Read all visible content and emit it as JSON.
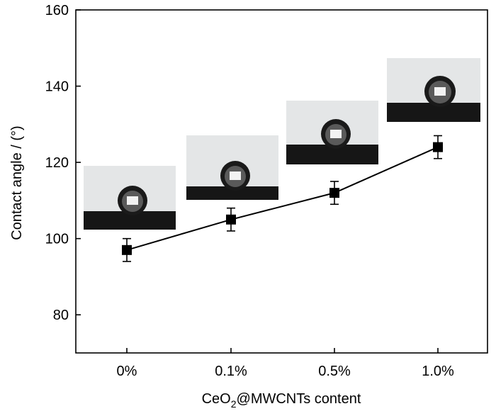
{
  "chart_data": {
    "type": "line",
    "xlabel_main": "CeO",
    "xlabel_sub": "2",
    "xlabel_rest": "@MWCNTs content",
    "ylabel": "Contact angle / (°)",
    "categories": [
      "0%",
      "0.1%",
      "0.5%",
      "1.0%"
    ],
    "values": [
      97,
      105,
      112,
      124
    ],
    "errors": [
      3,
      3,
      3,
      3
    ],
    "ylim": [
      70,
      160
    ],
    "yticks": [
      80,
      100,
      120,
      140,
      160
    ],
    "marker": "square",
    "color": "#000000",
    "insets": [
      "water-droplet-photo",
      "water-droplet-photo",
      "water-droplet-photo",
      "water-droplet-photo"
    ]
  }
}
